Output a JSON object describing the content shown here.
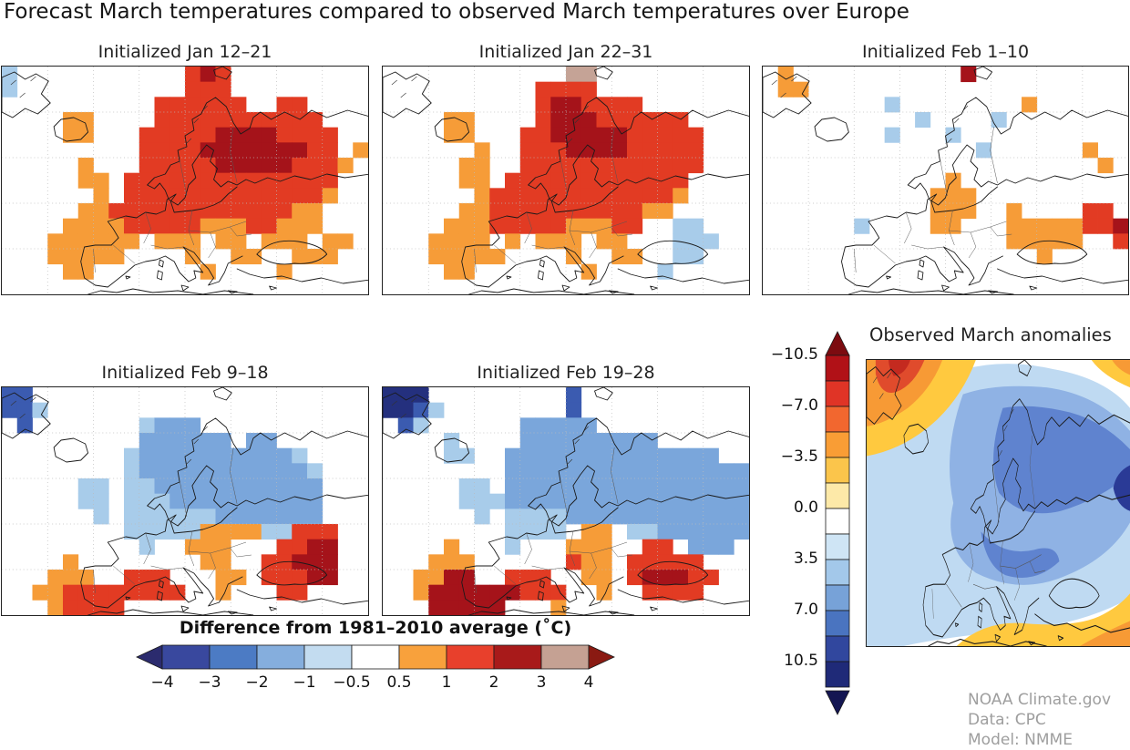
{
  "page": {
    "title": "Forecast March temperatures compared to observed March temperatures over Europe",
    "background": "#ffffff"
  },
  "palette": {
    "o": "#F69C38",
    "r": "#E23B23",
    "d": "#A5131A",
    "t": "#C5A396",
    "l": "#A8CCEA",
    "b": "#7AA6DB",
    "B": "#3B5BB0",
    "N": "#24307E"
  },
  "panels": [
    {
      "title": "Initialized Jan 12–21",
      "grid": [
        "l...........rdr.........",
        "l...........rrr.........",
        "..........rrrrrr..rr....",
        "....oo....rrrrrrrrrrr...",
        "....oo...rrrrrddddrrrr..",
        ".........rrrrdddddddrr.o",
        ".....o...rrrrrdddddrrro.",
        ".....oo.rrrrrrrrrrrrrr..",
        "......o.rrrrrrrrrrrrro..",
        ".....oorrrrrrrrrrrroo...",
        "....oooorrrrrooorrooo...",
        "...oooooo.ooo.oo.ooo.oo.",
        "...ooooo....o..oo..ooo..",
        "....oo.......o....o.....",
        "........................"
      ]
    },
    {
      "title": "Initialized Jan 22–31",
      "grid": [
        "............tt..........",
        "..........rrrr..........",
        "..........rddrrrr.......",
        "....oo....rdddrrrrrr....",
        "....oo...rrdddddrrrrr...",
        "......o..rrrddddrrrrr...",
        ".....oo..rrrrrrrrrrrr...",
        ".....oo.rrrrrrrrrrrr....",
        "......orrrrrrrrrrrro....",
        ".....oorrrrrrrrrroo.....",
        "....ooorrrrrooorr..ll...",
        "...oooo.o.ooo.oo...lll..",
        "...ooooo....o..oo..ll...",
        "....oo.......o....l.....",
        "........................"
      ]
    },
    {
      "title": "Initialized Feb 1–10",
      "grid": [
        ".o...........d..........",
        ".oo.....................",
        "........l........o......",
        "..........l....l........",
        "........l...l...........",
        "..............l......o..",
        "......................o.",
        "............o...........",
        "...........ooo..........",
        "...........ooo..o....rr.",
        "......l....oo...ooooorrd",
        "................ooooo..r",
        "..................o.....",
        "........................",
        "........................"
      ]
    },
    {
      "title": "Initialized Feb 9–18",
      "grid": [
        "BB......................",
        "BBl.....................",
        ".B.......lbbb...........",
        ".........bbbbbb.bb......",
        "........lbbbbbbbbbbl....",
        "........lbbbbbbbbbbbl...",
        ".....ll.llbbbbbbbbbbb...",
        ".....ll.lllbbbbbbbbbb...",
        "......l.llllllbbbbbbb...",
        "........llllloooollrrr..",
        ".........l..ooo...rrdd..",
        "....o........oo..rrddd..",
        "...ooo..rrr...oo.rrrdd..",
        "..oorrrrrrrr..o...rr....",
        "...orrrr................"
      ]
    },
    {
      "title": "Initialized Feb 19–28",
      "grid": [
        "NNN.........B...........",
        "NNBl........B...........",
        ".Bl......bbbbb..........",
        "....l....bbbbbbbbb......",
        "....ll..bbbbbbbbbbbbbb..",
        "........bbbbbbbbbbbbbbbb",
        ".....ll.bbbbbbbbbbbbbbbb",
        ".....lllbbbbbbbbbbbbbbbb",
        "......l.llllbbbbbbbbbbbb",
        "........llll.oo.llbbbbbb",
        "....o...l...ooo..rr.bbb.",
        "...ooo......roo.rrrrr...",
        "..oodd..rrr..oo.rdddrr..",
        "..oddddddrrr..o..rrrr...",
        "...ddddd...o............"
      ]
    }
  ],
  "legend": {
    "title": "Difference from 1981–2010 average (˚C)",
    "tick_labels": [
      "−4",
      "−3",
      "−2",
      "−1",
      "−0.5",
      "0.5",
      "1",
      "2",
      "3",
      "4"
    ],
    "segment_colors": [
      "#39489E",
      "#4C7BC4",
      "#85AEDD",
      "#C3DCF0",
      "#FFFFFF",
      "#F8A13C",
      "#E8402C",
      "#A81A1A",
      "#C5A193"
    ],
    "arrow_left_color": "#2B2B6E",
    "arrow_right_color": "#8A1A12"
  },
  "observed": {
    "title": "Observed March anomalies",
    "colorbar": {
      "tick_labels": [
        "−10.5",
        "−7.0",
        "−3.5",
        "0.0",
        "3.5",
        "7.0",
        "10.5"
      ],
      "segment_colors": [
        "#B11117",
        "#E03426",
        "#F2672F",
        "#F99D35",
        "#FBC54B",
        "#FDE9A8",
        "#FFFFFF",
        "#CFE5F5",
        "#A3C8EA",
        "#77A2D8",
        "#4A74C0",
        "#31479E",
        "#1F2A78"
      ],
      "arrow_top_color": "#7C0B10",
      "arrow_bottom_color": "#141652"
    },
    "map_colors": {
      "yellow": "#FFC93F",
      "orange": "#F79A35",
      "red": "#E04B2C",
      "dark_red": "#C42A1F",
      "light_blue": "#BFDAF2",
      "medium_blue": "#8FB2E4",
      "deep_blue": "#5F83CF",
      "navy": "#2A3A96"
    }
  },
  "credits": {
    "line1": "NOAA Climate.gov",
    "line2": "Data: CPC",
    "line3": "Model: NMME"
  },
  "chart_data": {
    "type": "heatmap",
    "title": "Forecast March temperatures compared to observed March temperatures over Europe",
    "panels": [
      {
        "title": "Initialized Jan 12–21",
        "dominant_anomaly": "+1 to +3 °C over most of Europe; +2 to +3 °C core over Scandinavia, Baltic and western Russia; +0.5 to +1 °C fringes over Iberia, France, Balkans"
      },
      {
        "title": "Initialized Jan 22–31",
        "dominant_anomaly": "+1 to +3 °C over most of Europe; +2 to +3 °C core over northern Scandinavia; small −1 to −2 °C patch near the Black Sea"
      },
      {
        "title": "Initialized Feb 1–10",
        "dominant_anomaly": "near zero; scattered weak warm (+0.5 to +2 °C, Balkans and far southeast) and cool (−1 to −2 °C) patches"
      },
      {
        "title": "Initialized Feb 9–18",
        "dominant_anomaly": "−1 to −3 °C over northern and central Europe; +1 to +3 °C over North Africa, Turkey and the Middle East"
      },
      {
        "title": "Initialized Feb 19–28",
        "dominant_anomaly": "−2 to −3 °C over northern and eastern Europe; +2 to +4 °C across Iberia, North Africa and the eastern Mediterranean"
      }
    ],
    "forecast_scale": {
      "label": "Difference from 1981–2010 average (˚C)",
      "ticks": [
        -4,
        -3,
        -2,
        -1,
        -0.5,
        0.5,
        1,
        2,
        3,
        4
      ],
      "units": "°C",
      "orientation": "horizontal",
      "arrow_ends": true
    },
    "observed_scale": {
      "label": "Observed March anomalies",
      "ticks": [
        -10.5,
        -7.0,
        -3.5,
        0.0,
        3.5,
        7.0,
        10.5
      ],
      "orientation": "vertical",
      "warm_at_top": true,
      "arrow_ends": true
    },
    "cell_value_key": {
      "o": "+0.5 to +1 °C",
      "r": "+1 to +2 °C",
      "d": "+2 to +3 °C",
      "t": "+3 to +4 °C",
      "l": "−1 to −2 °C",
      "b": "−2 to −3 °C",
      "B": "−3 to −4 °C",
      "N": "below −4 °C"
    },
    "observed_summary": "Observed March anomalies map: cool (blue) over most of Europe with deepest blues over Scandinavia and eastern Europe, warm (yellow–orange–red) core near Greenland/Iceland at top-left and a warm band across the far south/southeast"
  }
}
